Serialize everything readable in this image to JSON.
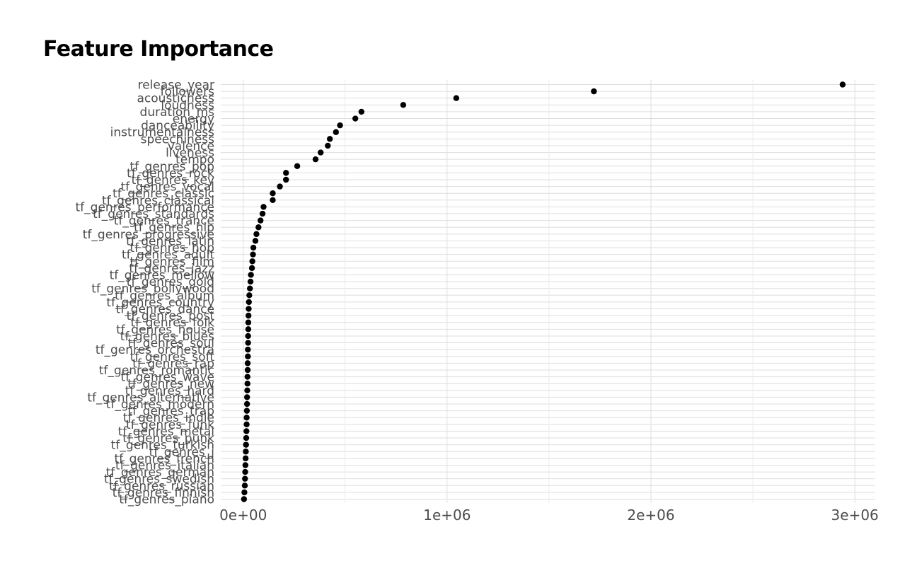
{
  "chart_data": {
    "type": "scatter",
    "title": "Feature Importance",
    "xlabel": "",
    "ylabel": "",
    "xlim": [
      -110000,
      3100000
    ],
    "xticks": [
      0,
      1000000,
      2000000,
      3000000
    ],
    "xtick_labels": [
      "0e+00",
      "1e+06",
      "2e+06",
      "3e+06"
    ],
    "grid": true,
    "legend": "none",
    "point_color": "#000000",
    "categories": [
      "release_year",
      "followers",
      "acousticness",
      "loudness",
      "duration_ms",
      "energy",
      "danceability",
      "instrumentalness",
      "speechiness",
      "valence",
      "liveness",
      "tempo",
      "tf_genres_pop",
      "tf_genres_rock",
      "tf_genres_key",
      "tf_genres_vocal",
      "tf_genres_classic",
      "tf_genres_classical",
      "tf_genres_performance",
      "tf_genres_standards",
      "tf_genres_trance",
      "tf_genres_hip",
      "tf_genres_progressive",
      "tf_genres_latin",
      "tf_genres_hop",
      "tf_genres_adult",
      "tf_genres_film",
      "tf_genres_jazz",
      "tf_genres_mellow",
      "tf_genres_gold",
      "tf_genres_bollywood",
      "tf_genres_album",
      "tf_genres_country",
      "tf_genres_dance",
      "tf_genres_post",
      "tf_genres_folk",
      "tf_genres_house",
      "tf_genres_blues",
      "tf_genres_soul",
      "tf_genres_orchestra",
      "tf_genres_soft",
      "tf_genres_rap",
      "tf_genres_romantic",
      "tf_genres_wave",
      "tf_genres_new",
      "tf_genres_hard",
      "tf_genres_alternative",
      "tf_genres_modern",
      "tf_genres_trap",
      "tf_genres_indie",
      "tf_genres_funk",
      "tf_genres_metal",
      "tf_genres_punk",
      "tf_genres_turkish",
      "tf_genres_j",
      "tf_genres_french",
      "tf_genres_italian",
      "tf_genres_german",
      "tf_genres_swedish",
      "tf_genres_russian",
      "tf_genres_finnish",
      "tf_genres_piano"
    ],
    "values": [
      2940000,
      1720000,
      1045000,
      785000,
      580000,
      550000,
      475000,
      455000,
      425000,
      415000,
      380000,
      355000,
      265000,
      210000,
      210000,
      180000,
      145000,
      145000,
      100000,
      95000,
      85000,
      75000,
      65000,
      60000,
      50000,
      48000,
      45000,
      43000,
      38000,
      36000,
      33000,
      30000,
      28000,
      27000,
      26000,
      25000,
      25000,
      24000,
      24000,
      23000,
      23000,
      22000,
      22000,
      21000,
      21000,
      20000,
      19000,
      19000,
      18000,
      17000,
      17000,
      16000,
      15000,
      14000,
      13000,
      12000,
      11000,
      10000,
      9000,
      8000,
      6000,
      4000
    ]
  }
}
